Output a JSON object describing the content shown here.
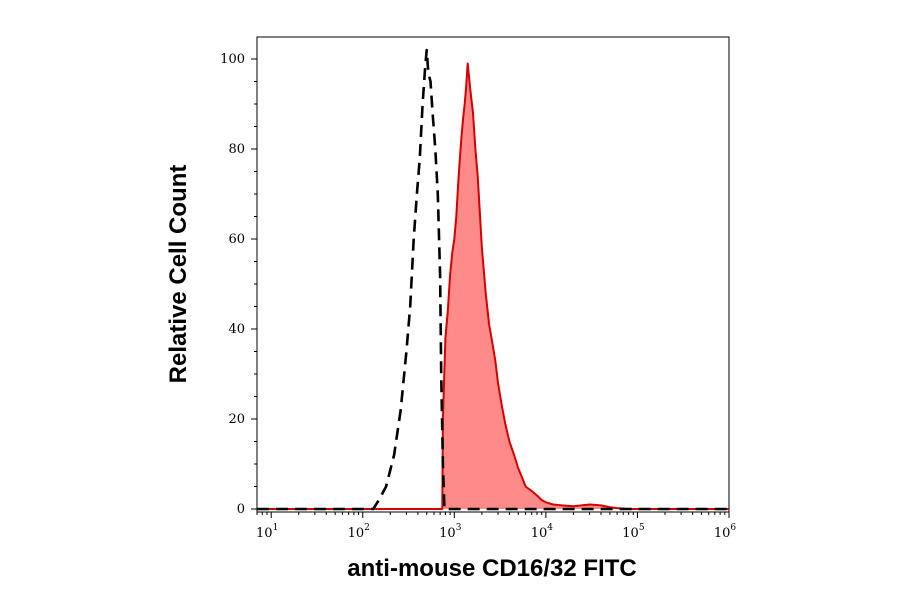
{
  "chart_data": {
    "type": "area",
    "xlabel": "anti-mouse CD16/32 FITC",
    "ylabel": "Relative Cell Count",
    "xscale": "log",
    "xlim": [
      7,
      1000000
    ],
    "ylim": [
      0,
      100
    ],
    "grid": false,
    "x_ticks": [
      {
        "base": "10",
        "exp": "1",
        "value": 10
      },
      {
        "base": "10",
        "exp": "2",
        "value": 100
      },
      {
        "base": "10",
        "exp": "3",
        "value": 1000
      },
      {
        "base": "10",
        "exp": "4",
        "value": 10000
      },
      {
        "base": "10",
        "exp": "5",
        "value": 100000
      },
      {
        "base": "10",
        "exp": "6",
        "value": 1000000
      }
    ],
    "y_ticks": [
      "0",
      "20",
      "40",
      "60",
      "80",
      "100"
    ],
    "series": [
      {
        "style": "dashed",
        "color": "#000000",
        "fill": "none",
        "x": [
          7,
          130,
          150,
          180,
          220,
          260,
          300,
          330,
          360,
          390,
          420,
          450,
          480,
          500,
          520,
          550,
          580,
          620,
          660,
          700,
          720,
          750,
          780,
          1000000
        ],
        "y": [
          0,
          0,
          2,
          5,
          12,
          22,
          35,
          45,
          60,
          70,
          78,
          90,
          98,
          102,
          97,
          95,
          88,
          80,
          70,
          52,
          30,
          10,
          0,
          0
        ]
      },
      {
        "style": "solid",
        "color": "#d40000",
        "fill": "#ff8a8a",
        "x": [
          7,
          740,
          750,
          800,
          850,
          900,
          950,
          1000,
          1050,
          1100,
          1150,
          1200,
          1250,
          1300,
          1350,
          1400,
          1500,
          1600,
          1700,
          1800,
          1900,
          2000,
          2200,
          2400,
          2600,
          2800,
          3000,
          3300,
          3600,
          4000,
          4500,
          5000,
          5500,
          6000,
          7000,
          8000,
          9000,
          10000,
          12000,
          15000,
          20000,
          30000,
          40000,
          50000,
          60000,
          80000,
          1000000
        ],
        "y": [
          0,
          0,
          20,
          38,
          44,
          52,
          57,
          60,
          65,
          72,
          78,
          83,
          87,
          90,
          94,
          99,
          93,
          88,
          80,
          74,
          66,
          58,
          48,
          41,
          37,
          33,
          28,
          23,
          19,
          15,
          12,
          9,
          7,
          5,
          4,
          3,
          2,
          1.5,
          1,
          0.8,
          0.6,
          1,
          0.8,
          0.4,
          0.2,
          0,
          0
        ]
      }
    ]
  }
}
